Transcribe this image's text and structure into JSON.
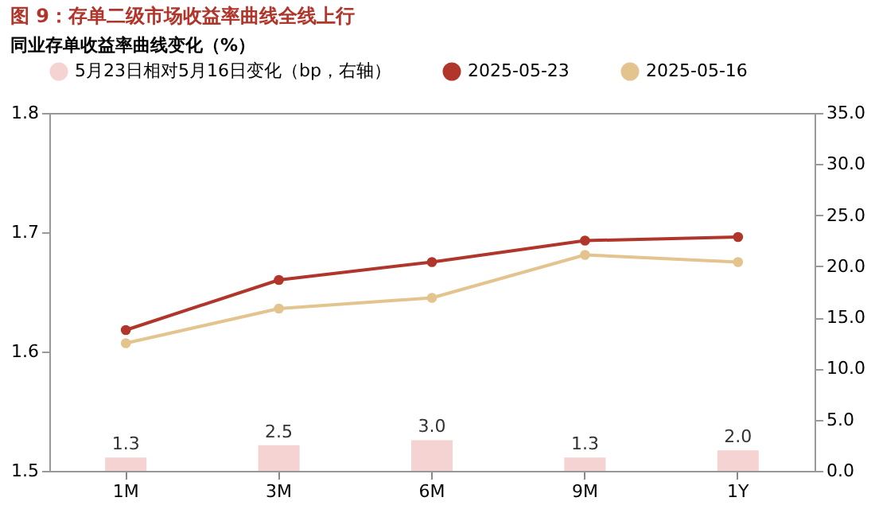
{
  "chart_data": {
    "type": "line",
    "title": "图 9：存单二级市场收益率曲线全线上行",
    "subtitle": "同业存单收益率曲线变化（%）",
    "categories": [
      "1M",
      "3M",
      "6M",
      "9M",
      "1Y"
    ],
    "series": [
      {
        "name": "5月23日相对5月16日变化（bp，右轴）",
        "type": "bar",
        "axis": "y2",
        "color": "#f6d3d3",
        "values": [
          1.3,
          2.5,
          3.0,
          1.3,
          2.0
        ],
        "value_labels": [
          "1.3",
          "2.5",
          "3.0",
          "1.3",
          "2.0"
        ]
      },
      {
        "name": "2025-05-23",
        "color": "#b0352b",
        "values": [
          1.618,
          1.66,
          1.675,
          1.693,
          1.696
        ]
      },
      {
        "name": "2025-05-16",
        "color": "#e3c48e",
        "values": [
          1.607,
          1.636,
          1.645,
          1.681,
          1.675
        ]
      }
    ],
    "ylim": [
      1.5,
      1.8
    ],
    "yticks": [
      1.5,
      1.6,
      1.7,
      1.8
    ],
    "y2lim": [
      0,
      35
    ],
    "y2ticks": [
      {
        "value": 0,
        "label": "0.0"
      },
      {
        "value": 5,
        "label": "5.0"
      },
      {
        "value": 10,
        "label": "10.0"
      },
      {
        "value": 15,
        "label": "15.0"
      },
      {
        "value": 20,
        "label": "20.0"
      },
      {
        "value": 25,
        "label": "25.0"
      },
      {
        "value": 30,
        "label": "30.0"
      },
      {
        "value": 35,
        "label": "35.0"
      }
    ],
    "marker": "circle",
    "grid": false,
    "legend": "top"
  }
}
